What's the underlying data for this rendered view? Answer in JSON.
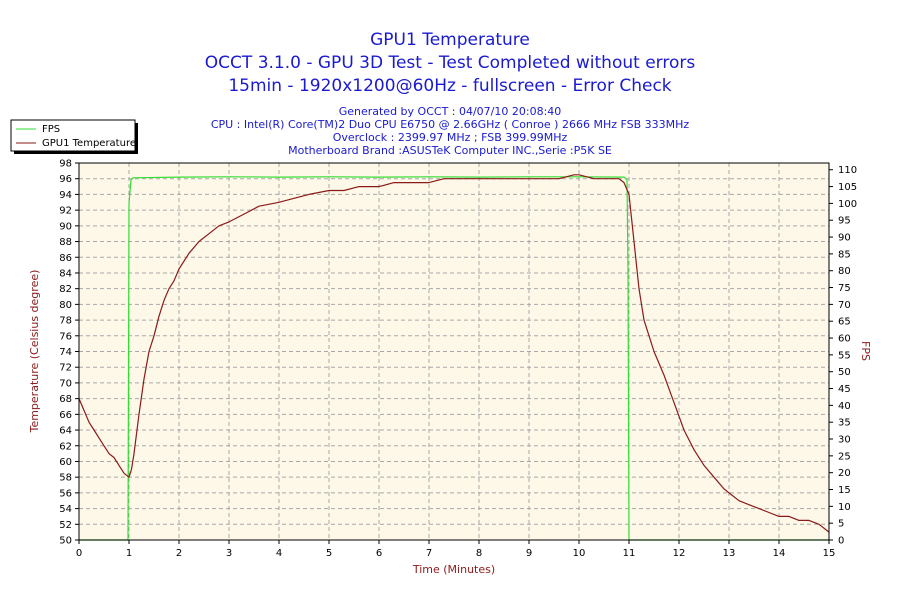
{
  "chart_data": {
    "type": "line",
    "title": [
      "GPU1 Temperature",
      "OCCT 3.1.0 - GPU 3D Test - Test Completed without errors",
      "15min - 1920x1200@60Hz - fullscreen - Error Check"
    ],
    "info": [
      "Generated by OCCT : 04/07/10 20:08:40",
      "CPU : Intel(R) Core(TM)2 Duo CPU E6750 @ 2.66GHz ( Conroe ) 2666 MHz FSB 333MHz",
      "Overclock : 2399.97 MHz ; FSB 399.99MHz",
      "Motherboard Brand :ASUSTeK Computer INC.,Serie :P5K SE"
    ],
    "xlabel": "Time (Minutes)",
    "ylabel_left": "Temperature (Celsius degree)",
    "ylabel_right": "FPS",
    "xlim": [
      0,
      15
    ],
    "ylim_left": [
      50,
      98
    ],
    "ylim_right": [
      0,
      112
    ],
    "xticks": [
      "0",
      "1",
      "2",
      "3",
      "4",
      "5",
      "6",
      "7",
      "8",
      "9",
      "10",
      "11",
      "12",
      "13",
      "14",
      "15"
    ],
    "yticks_left": [
      "50",
      "52",
      "54",
      "56",
      "58",
      "60",
      "62",
      "64",
      "66",
      "68",
      "70",
      "72",
      "74",
      "76",
      "78",
      "80",
      "82",
      "84",
      "86",
      "88",
      "90",
      "92",
      "94",
      "96",
      "98"
    ],
    "yticks_right": [
      "0",
      "5",
      "10",
      "15",
      "20",
      "25",
      "30",
      "35",
      "40",
      "45",
      "50",
      "55",
      "60",
      "65",
      "70",
      "75",
      "80",
      "85",
      "90",
      "95",
      "100",
      "105",
      "110"
    ],
    "grid": true,
    "legend_position": "top-left",
    "colors": {
      "fps": "#33dd33",
      "temperature": "#8b1a1a",
      "plot_background": "#fdf8e8",
      "grid": "#a8a8a8",
      "title": "#1a1ad0"
    },
    "series": [
      {
        "name": "FPS",
        "axis": "right",
        "x": [
          0,
          0.98,
          1.0,
          1.04,
          1.08,
          2,
          3,
          4,
          5,
          6,
          7,
          8,
          9,
          10,
          10.9,
          10.96,
          10.98,
          11.0,
          15
        ],
        "y": [
          0,
          0,
          100,
          107,
          107.6,
          107.8,
          107.9,
          107.8,
          107.9,
          107.8,
          107.9,
          107.8,
          107.9,
          107.9,
          107.8,
          107,
          80,
          0,
          0
        ]
      },
      {
        "name": "GPU1 Temperature",
        "axis": "left",
        "x": [
          0,
          0.1,
          0.2,
          0.3,
          0.4,
          0.5,
          0.6,
          0.7,
          0.8,
          0.9,
          1.0,
          1.05,
          1.1,
          1.2,
          1.3,
          1.4,
          1.5,
          1.6,
          1.7,
          1.8,
          1.9,
          2.0,
          2.2,
          2.4,
          2.6,
          2.8,
          3.0,
          3.3,
          3.6,
          4.0,
          4.3,
          4.6,
          5.0,
          5.3,
          5.6,
          6.0,
          6.3,
          6.6,
          7.0,
          7.3,
          7.6,
          8.0,
          8.3,
          8.6,
          9.0,
          9.3,
          9.6,
          9.9,
          10.0,
          10.3,
          10.6,
          10.8,
          10.9,
          11.0,
          11.1,
          11.2,
          11.3,
          11.5,
          11.7,
          11.9,
          12.1,
          12.3,
          12.5,
          12.7,
          12.9,
          13.0,
          13.2,
          13.4,
          13.6,
          13.8,
          14.0,
          14.2,
          14.4,
          14.6,
          14.8,
          15.0
        ],
        "y": [
          68,
          66.5,
          65,
          64,
          63,
          62,
          61,
          60.5,
          59.5,
          58.5,
          58,
          59,
          61,
          66,
          70.5,
          74,
          76,
          78.5,
          80.5,
          82,
          83,
          84.5,
          86.5,
          88,
          89,
          90,
          90.5,
          91.5,
          92.5,
          93,
          93.5,
          94,
          94.5,
          94.5,
          95,
          95,
          95.5,
          95.5,
          95.5,
          96,
          96,
          96,
          96,
          96,
          96,
          96,
          96,
          96.5,
          96.5,
          96,
          96,
          96,
          95.5,
          94,
          88,
          82,
          78,
          74,
          71,
          67.5,
          64,
          61.5,
          59.5,
          58,
          56.5,
          56,
          55,
          54.5,
          54,
          53.5,
          53,
          53,
          52.5,
          52.5,
          52,
          51
        ]
      }
    ]
  }
}
